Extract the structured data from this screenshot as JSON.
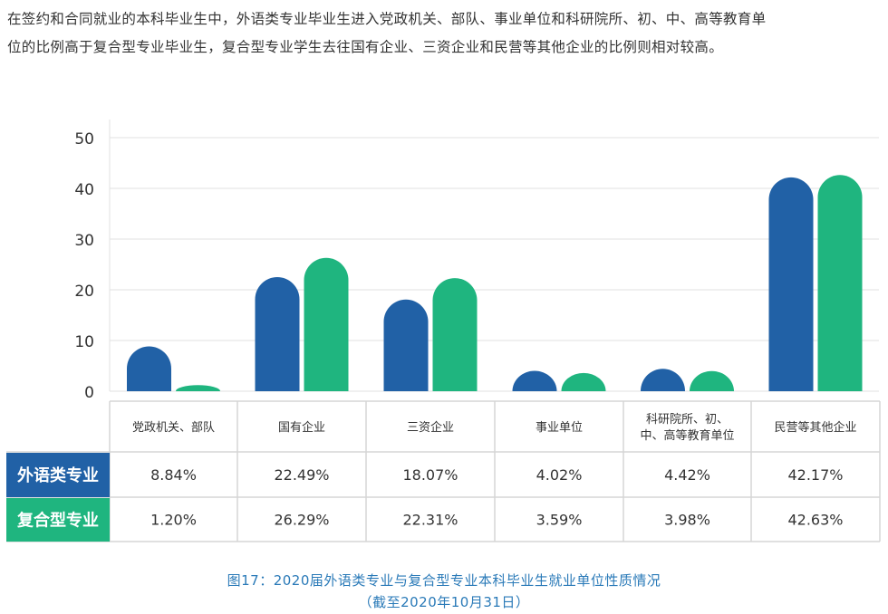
{
  "intro": {
    "line1": "在签约和合同就业的本科毕业生中，外语类专业毕业生进入党政机关、部队、事业单位和科研院所、初、中、高等教育单",
    "line2": "位的比例高于复合型专业毕业生，复合型专业学生去往国有企业、三资企业和民营等其他企业的比例则相对较高。"
  },
  "caption": {
    "line1": "图17：2020届外语类专业与复合型专业本科毕业生就业单位性质情况",
    "line2": "（截至2020年10月31日）"
  },
  "colors": {
    "series1": "#2161a6",
    "series2": "#1fb57f",
    "grid": "#e2e2e2",
    "table_border": "#d6d6d6",
    "axis_text": "#333333"
  },
  "chart_data": {
    "type": "bar",
    "title": "",
    "xlabel": "",
    "ylabel": "",
    "ylim": [
      0,
      50
    ],
    "yticks": [
      0,
      10,
      20,
      30,
      40,
      50
    ],
    "grid": true,
    "categories": [
      [
        "党政机关、部队"
      ],
      [
        "国有企业"
      ],
      [
        "三资企业"
      ],
      [
        "事业单位"
      ],
      [
        "科研院所、初、",
        "中、高等教育单位"
      ],
      [
        "民营等其他企业"
      ]
    ],
    "series": [
      {
        "name": "外语类专业",
        "values": [
          8.84,
          22.49,
          18.07,
          4.02,
          4.42,
          42.17
        ],
        "labels": [
          "8.84%",
          "22.49%",
          "18.07%",
          "4.02%",
          "4.42%",
          "42.17%"
        ]
      },
      {
        "name": "复合型专业",
        "values": [
          1.2,
          26.29,
          22.31,
          3.59,
          3.98,
          42.63
        ],
        "labels": [
          "1.20%",
          "26.29%",
          "22.31%",
          "3.59%",
          "3.98%",
          "42.63%"
        ]
      }
    ]
  }
}
